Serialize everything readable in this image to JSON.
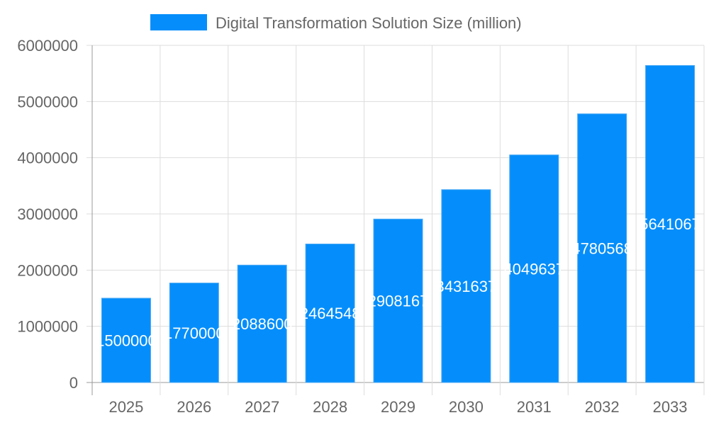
{
  "chart_data": {
    "type": "bar",
    "title": "",
    "xlabel": "",
    "ylabel": "",
    "legend": {
      "position": "top",
      "entries": [
        "Digital Transformation Solution Size (million)"
      ]
    },
    "categories": [
      "2025",
      "2026",
      "2027",
      "2028",
      "2029",
      "2030",
      "2031",
      "2032",
      "2033"
    ],
    "series": [
      {
        "name": "Digital Transformation Solution Size (million)",
        "values": [
          1500000,
          1770000,
          2088600,
          2464548,
          2908167,
          3431637,
          4049637,
          4780568,
          5641067
        ],
        "color": "#058efb"
      }
    ],
    "ylim": [
      0,
      6000000
    ],
    "yticks": [
      "0",
      "1000000",
      "2000000",
      "3000000",
      "4000000",
      "5000000",
      "6000000"
    ],
    "grid": true,
    "data_labels": true
  }
}
